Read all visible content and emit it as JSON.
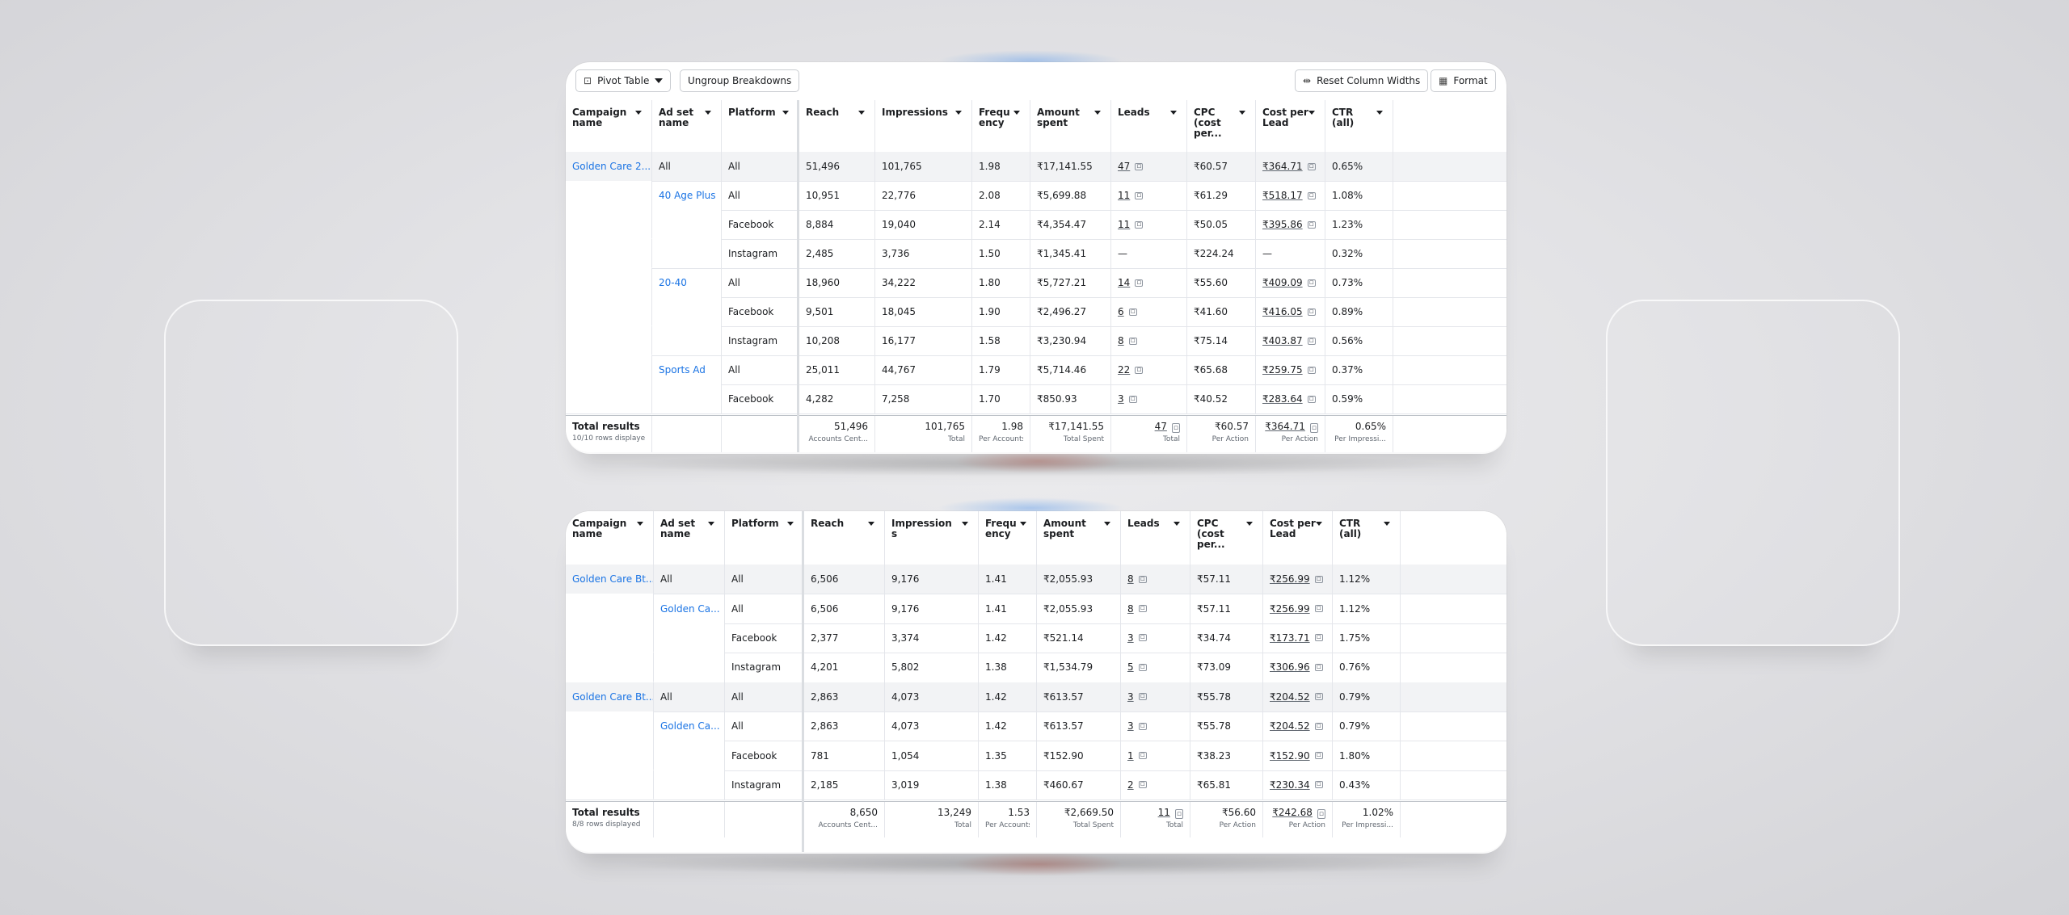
{
  "toolbar": {
    "pivot_label": "Pivot Table",
    "ungroup_label": "Ungroup Breakdowns",
    "reset_label": "Reset Column Widths",
    "format_label": "Format"
  },
  "columns": [
    {
      "key": "campaign",
      "label": "Campaign name"
    },
    {
      "key": "adset",
      "label": "Ad set name"
    },
    {
      "key": "platform",
      "label": "Platform"
    },
    {
      "key": "reach",
      "label": "Reach"
    },
    {
      "key": "impressions",
      "label": "Impressions"
    },
    {
      "key": "frequency",
      "label": "Frequency"
    },
    {
      "key": "amount",
      "label": "Amount spent"
    },
    {
      "key": "leads",
      "label": "Leads"
    },
    {
      "key": "cpc",
      "label": "CPC (cost per..."
    },
    {
      "key": "cpl",
      "label": "Cost per Lead"
    },
    {
      "key": "ctr",
      "label": "CTR (all)"
    }
  ],
  "table_top": {
    "rows": [
      {
        "campaign": "Golden Care 2...",
        "adset": "All",
        "platform": "All",
        "reach": "51,496",
        "impressions": "101,765",
        "frequency": "1.98",
        "amount": "₹17,141.55",
        "leads": "47",
        "cpc": "₹60.57",
        "cpl": "₹364.71",
        "ctr": "0.65%"
      },
      {
        "campaign": "",
        "adset": "40 Age Plus",
        "platform": "All",
        "reach": "10,951",
        "impressions": "22,776",
        "frequency": "2.08",
        "amount": "₹5,699.88",
        "leads": "11",
        "cpc": "₹61.29",
        "cpl": "₹518.17",
        "ctr": "1.08%"
      },
      {
        "campaign": "",
        "adset": "",
        "platform": "Facebook",
        "reach": "8,884",
        "impressions": "19,040",
        "frequency": "2.14",
        "amount": "₹4,354.47",
        "leads": "11",
        "cpc": "₹50.05",
        "cpl": "₹395.86",
        "ctr": "1.23%"
      },
      {
        "campaign": "",
        "adset": "",
        "platform": "Instagram",
        "reach": "2,485",
        "impressions": "3,736",
        "frequency": "1.50",
        "amount": "₹1,345.41",
        "leads": "—",
        "cpc": "₹224.24",
        "cpl": "—",
        "ctr": "0.32%"
      },
      {
        "campaign": "",
        "adset": "20-40",
        "platform": "All",
        "reach": "18,960",
        "impressions": "34,222",
        "frequency": "1.80",
        "amount": "₹5,727.21",
        "leads": "14",
        "cpc": "₹55.60",
        "cpl": "₹409.09",
        "ctr": "0.73%"
      },
      {
        "campaign": "",
        "adset": "",
        "platform": "Facebook",
        "reach": "9,501",
        "impressions": "18,045",
        "frequency": "1.90",
        "amount": "₹2,496.27",
        "leads": "6",
        "cpc": "₹41.60",
        "cpl": "₹416.05",
        "ctr": "0.89%"
      },
      {
        "campaign": "",
        "adset": "",
        "platform": "Instagram",
        "reach": "10,208",
        "impressions": "16,177",
        "frequency": "1.58",
        "amount": "₹3,230.94",
        "leads": "8",
        "cpc": "₹75.14",
        "cpl": "₹403.87",
        "ctr": "0.56%"
      },
      {
        "campaign": "",
        "adset": "Sports Ad",
        "platform": "All",
        "reach": "25,011",
        "impressions": "44,767",
        "frequency": "1.79",
        "amount": "₹5,714.46",
        "leads": "22",
        "cpc": "₹65.68",
        "cpl": "₹259.75",
        "ctr": "0.37%"
      },
      {
        "campaign": "",
        "adset": "",
        "platform": "Facebook",
        "reach": "4,282",
        "impressions": "7,258",
        "frequency": "1.70",
        "amount": "₹850.93",
        "leads": "3",
        "cpc": "₹40.52",
        "cpl": "₹283.64",
        "ctr": "0.59%"
      }
    ],
    "totals": {
      "label": "Total results",
      "sub": "10/10 rows displaye",
      "reach": {
        "v": "51,496",
        "s": "Accounts Cent..."
      },
      "impressions": {
        "v": "101,765",
        "s": "Total"
      },
      "frequency": {
        "v": "1.98",
        "s": "Per Accounts Centr..."
      },
      "amount": {
        "v": "₹17,141.55",
        "s": "Total Spent"
      },
      "leads": {
        "v": "47",
        "s": "Total"
      },
      "cpc": {
        "v": "₹60.57",
        "s": "Per Action"
      },
      "cpl": {
        "v": "₹364.71",
        "s": "Per Action"
      },
      "ctr": {
        "v": "0.65%",
        "s": "Per Impressi..."
      }
    }
  },
  "table_bottom": {
    "rows": [
      {
        "campaign": "Golden Care Bt...",
        "adset": "All",
        "platform": "All",
        "reach": "6,506",
        "impressions": "9,176",
        "frequency": "1.41",
        "amount": "₹2,055.93",
        "leads": "8",
        "cpc": "₹57.11",
        "cpl": "₹256.99",
        "ctr": "1.12%"
      },
      {
        "campaign": "",
        "adset": "Golden Ca...",
        "platform": "All",
        "reach": "6,506",
        "impressions": "9,176",
        "frequency": "1.41",
        "amount": "₹2,055.93",
        "leads": "8",
        "cpc": "₹57.11",
        "cpl": "₹256.99",
        "ctr": "1.12%"
      },
      {
        "campaign": "",
        "adset": "",
        "platform": "Facebook",
        "reach": "2,377",
        "impressions": "3,374",
        "frequency": "1.42",
        "amount": "₹521.14",
        "leads": "3",
        "cpc": "₹34.74",
        "cpl": "₹173.71",
        "ctr": "1.75%"
      },
      {
        "campaign": "",
        "adset": "",
        "platform": "Instagram",
        "reach": "4,201",
        "impressions": "5,802",
        "frequency": "1.38",
        "amount": "₹1,534.79",
        "leads": "5",
        "cpc": "₹73.09",
        "cpl": "₹306.96",
        "ctr": "0.76%"
      },
      {
        "campaign": "Golden Care Bt...",
        "adset": "All",
        "platform": "All",
        "reach": "2,863",
        "impressions": "4,073",
        "frequency": "1.42",
        "amount": "₹613.57",
        "leads": "3",
        "cpc": "₹55.78",
        "cpl": "₹204.52",
        "ctr": "0.79%"
      },
      {
        "campaign": "",
        "adset": "Golden Ca...",
        "platform": "All",
        "reach": "2,863",
        "impressions": "4,073",
        "frequency": "1.42",
        "amount": "₹613.57",
        "leads": "3",
        "cpc": "₹55.78",
        "cpl": "₹204.52",
        "ctr": "0.79%"
      },
      {
        "campaign": "",
        "adset": "",
        "platform": "Facebook",
        "reach": "781",
        "impressions": "1,054",
        "frequency": "1.35",
        "amount": "₹152.90",
        "leads": "1",
        "cpc": "₹38.23",
        "cpl": "₹152.90",
        "ctr": "1.80%"
      },
      {
        "campaign": "",
        "adset": "",
        "platform": "Instagram",
        "reach": "2,185",
        "impressions": "3,019",
        "frequency": "1.38",
        "amount": "₹460.67",
        "leads": "2",
        "cpc": "₹65.81",
        "cpl": "₹230.34",
        "ctr": "0.43%"
      }
    ],
    "totals": {
      "label": "Total results",
      "sub": "8/8 rows displayed",
      "reach": {
        "v": "8,650",
        "s": "Accounts Cent..."
      },
      "impressions": {
        "v": "13,249",
        "s": "Total"
      },
      "frequency": {
        "v": "1.53",
        "s": "Per Accounts Centr..."
      },
      "amount": {
        "v": "₹2,669.50",
        "s": "Total Spent"
      },
      "leads": {
        "v": "11",
        "s": "Total"
      },
      "cpc": {
        "v": "₹56.60",
        "s": "Per Action"
      },
      "cpl": {
        "v": "₹242.68",
        "s": "Per Action"
      },
      "ctr": {
        "v": "1.02%",
        "s": "Per Impressi..."
      }
    }
  },
  "icons": {
    "pivot": "pivot-table-icon",
    "reset": "column-resize-icon",
    "format": "grid-format-icon",
    "breakdown": "breakdown-icon"
  }
}
